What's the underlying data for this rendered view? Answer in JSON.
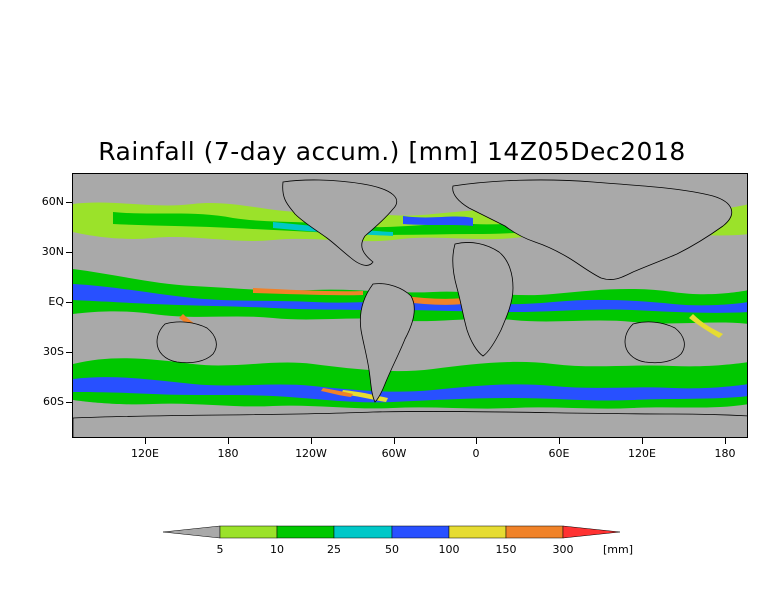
{
  "title": "Rainfall (7-day accum.) [mm] 14Z05Dec2018",
  "lat_labels": [
    "60N",
    "30N",
    "EQ",
    "30S",
    "60S"
  ],
  "lon_labels": [
    "120E",
    "180",
    "120W",
    "60W",
    "0",
    "60E",
    "120E",
    "180"
  ],
  "legend": {
    "bins": [
      "5",
      "10",
      "25",
      "50",
      "100",
      "150",
      "300"
    ],
    "unit": "[mm]",
    "colors": [
      "#a9a9a9",
      "#9be22a",
      "#00c800",
      "#00c8c8",
      "#2850ff",
      "#e6dc32",
      "#f08228",
      "#ff3232"
    ]
  },
  "colors": {
    "ocean_land_bg": "#a9a9a9",
    "coast": "#000000"
  }
}
